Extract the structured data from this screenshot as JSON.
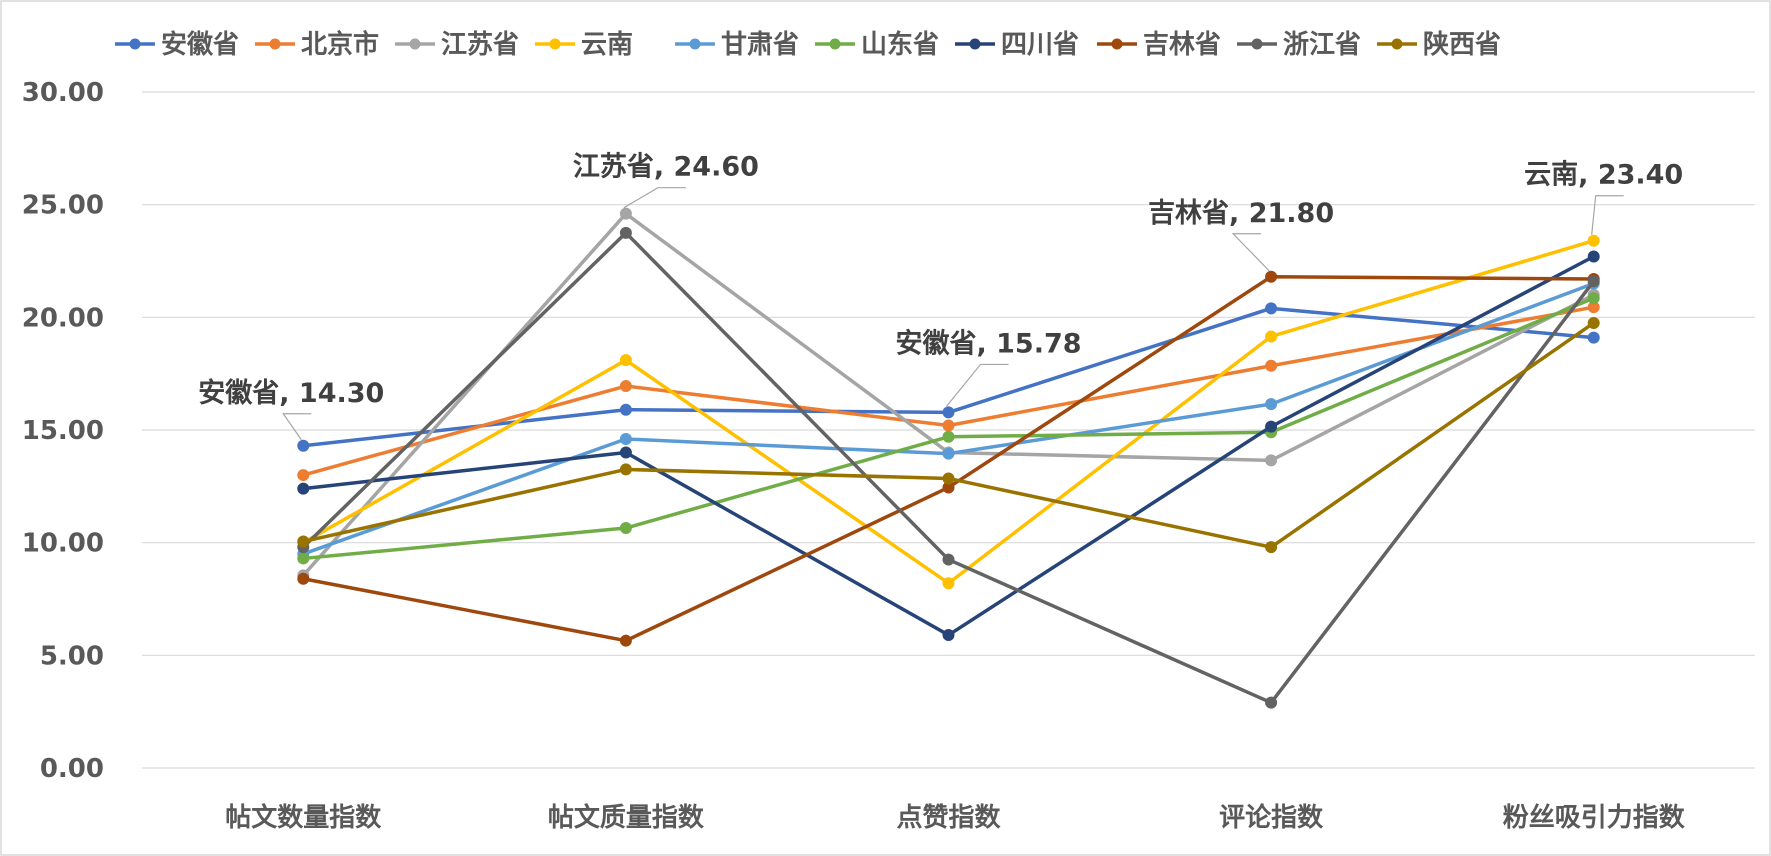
{
  "chart_data": {
    "type": "line",
    "categories": [
      "帖文数量指数",
      "帖文质量指数",
      "点赞指数",
      "评论指数",
      "粉丝吸引力指数"
    ],
    "ylim": [
      0,
      30
    ],
    "y_ticks": [
      "0.00",
      "5.00",
      "10.00",
      "15.00",
      "20.00",
      "25.00",
      "30.00"
    ],
    "grid": true,
    "legend_position": "top",
    "series": [
      {
        "name": "安徽省",
        "color": "#4472c4",
        "values": [
          14.3,
          15.9,
          15.78,
          20.4,
          19.1
        ]
      },
      {
        "name": "北京市",
        "color": "#ed7d31",
        "values": [
          13.0,
          16.95,
          15.2,
          17.85,
          20.45
        ]
      },
      {
        "name": "江苏省",
        "color": "#a5a5a5",
        "values": [
          8.55,
          24.6,
          14.0,
          13.65,
          21.0
        ]
      },
      {
        "name": "云南",
        "color": "#ffc000",
        "values": [
          10.0,
          18.1,
          8.2,
          19.15,
          23.4
        ]
      },
      {
        "name": "甘肃省",
        "color": "#5b9bd5",
        "values": [
          9.5,
          14.6,
          13.95,
          16.15,
          21.5
        ]
      },
      {
        "name": "山东省",
        "color": "#70ad47",
        "values": [
          9.3,
          10.65,
          14.7,
          14.9,
          20.85
        ]
      },
      {
        "name": "四川省",
        "color": "#264478",
        "values": [
          12.4,
          14.0,
          5.9,
          15.15,
          22.7
        ]
      },
      {
        "name": "吉林省",
        "color": "#9e480e",
        "values": [
          8.4,
          5.65,
          12.45,
          21.8,
          21.7
        ]
      },
      {
        "name": "浙江省",
        "color": "#636363",
        "values": [
          9.8,
          23.75,
          9.25,
          2.9,
          21.6
        ]
      },
      {
        "name": "陕西省",
        "color": "#997300",
        "values": [
          10.05,
          13.25,
          12.85,
          9.8,
          19.75
        ]
      }
    ],
    "annotations": [
      {
        "series": 0,
        "category": 0,
        "label": "安徽省, 14.30"
      },
      {
        "series": 2,
        "category": 1,
        "label": "江苏省, 24.60"
      },
      {
        "series": 0,
        "category": 2,
        "label": "安徽省, 15.78"
      },
      {
        "series": 7,
        "category": 3,
        "label": "吉林省, 21.80"
      },
      {
        "series": 3,
        "category": 4,
        "label": "云南, 23.40"
      }
    ]
  }
}
